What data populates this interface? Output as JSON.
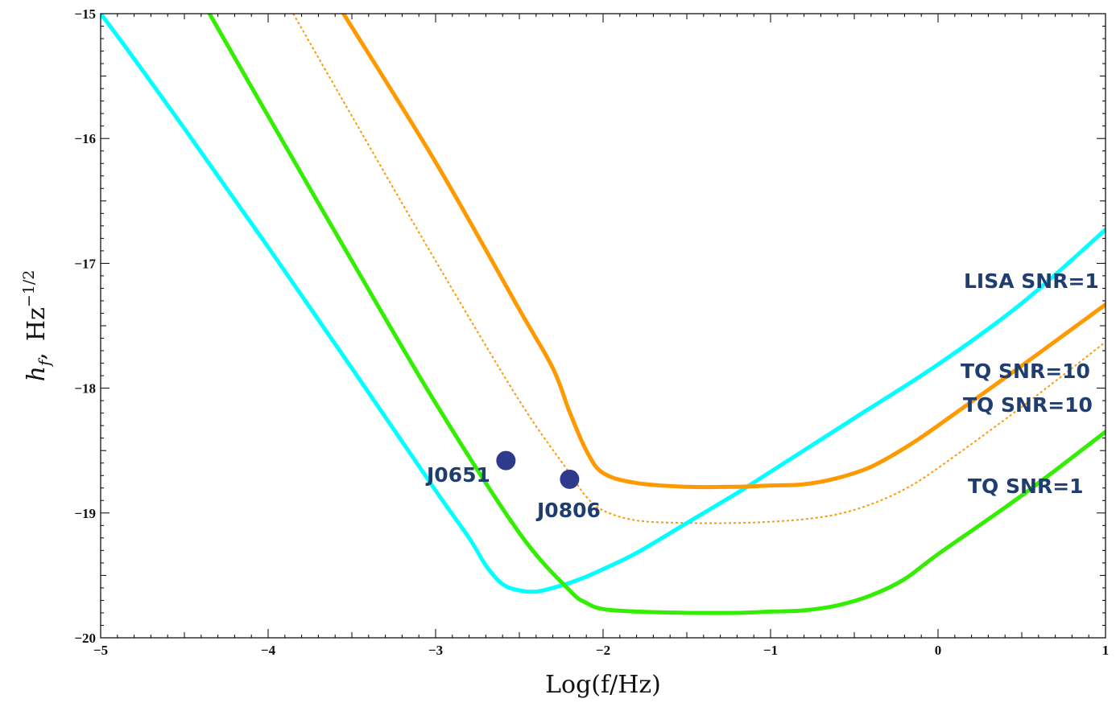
{
  "chart_data": {
    "type": "line",
    "title": "",
    "xlabel": "Log(f/Hz)",
    "ylabel": "h_f,  Hz^{-1/2}",
    "ylabel_parts": {
      "symbol": "h",
      "sub": "f",
      "comma": ",",
      "unit": "Hz",
      "exp": "−1/2"
    },
    "xlim": [
      -5,
      1
    ],
    "ylim": [
      -20,
      -15
    ],
    "xticks": [
      {
        "value": -5,
        "label": "−5"
      },
      {
        "value": -4,
        "label": "−4"
      },
      {
        "value": -3,
        "label": "−3"
      },
      {
        "value": -2,
        "label": "−2"
      },
      {
        "value": -1,
        "label": "−1"
      },
      {
        "value": 0,
        "label": "0"
      },
      {
        "value": 1,
        "label": "1"
      }
    ],
    "yticks": [
      {
        "value": -20,
        "label": "−20"
      },
      {
        "value": -19,
        "label": "−19"
      },
      {
        "value": -18,
        "label": "−18"
      },
      {
        "value": -17,
        "label": "−17"
      },
      {
        "value": -16,
        "label": "−16"
      },
      {
        "value": -15,
        "label": "−15"
      }
    ],
    "grid": false,
    "series": [
      {
        "id": "lisa",
        "color": "#00ffff",
        "style": "solid",
        "x": [
          -5.2,
          -5.0,
          -4.5,
          -4.0,
          -3.5,
          -3.0,
          -2.8,
          -2.7,
          -2.6,
          -2.5,
          -2.4,
          -2.3,
          -2.2,
          -2.1,
          -2.0,
          -1.8,
          -1.5,
          -1.2,
          -1.0,
          -0.5,
          0.0,
          0.5,
          1.0
        ],
        "y": [
          -14.71,
          -15.0,
          -15.92,
          -16.87,
          -17.84,
          -18.82,
          -19.2,
          -19.42,
          -19.57,
          -19.62,
          -19.63,
          -19.6,
          -19.56,
          -19.51,
          -19.45,
          -19.32,
          -19.08,
          -18.84,
          -18.67,
          -18.24,
          -17.81,
          -17.32,
          -16.73
        ]
      },
      {
        "id": "tq-snr10-solid",
        "color": "#ff9900",
        "style": "solid",
        "x": [
          -3.55,
          -3.0,
          -2.5,
          -2.3,
          -2.2,
          -2.1,
          -2.0,
          -1.8,
          -1.5,
          -1.2,
          -1.0,
          -0.8,
          -0.6,
          -0.4,
          -0.2,
          0.0,
          0.5,
          1.0
        ],
        "y": [
          -15.0,
          -16.19,
          -17.37,
          -17.84,
          -18.19,
          -18.5,
          -18.68,
          -18.76,
          -18.79,
          -18.79,
          -18.78,
          -18.77,
          -18.72,
          -18.63,
          -18.48,
          -18.3,
          -17.82,
          -17.33
        ]
      },
      {
        "id": "tq-snr10-dotted",
        "color": "#ff9900",
        "style": "dotted",
        "x": [
          -3.85,
          -3.5,
          -3.0,
          -2.5,
          -2.2,
          -2.1,
          -2.0,
          -1.8,
          -1.5,
          -1.2,
          -1.0,
          -0.8,
          -0.6,
          -0.4,
          -0.2,
          0.0,
          0.5,
          1.0
        ],
        "y": [
          -15.0,
          -15.82,
          -16.98,
          -18.1,
          -18.68,
          -18.87,
          -18.98,
          -19.06,
          -19.08,
          -19.08,
          -19.07,
          -19.05,
          -19.01,
          -18.93,
          -18.81,
          -18.64,
          -18.15,
          -17.63
        ]
      },
      {
        "id": "tq-snr1",
        "color": "#33ee00",
        "style": "solid",
        "x": [
          -4.35,
          -4.0,
          -3.5,
          -3.0,
          -2.5,
          -2.2,
          -2.1,
          -2.0,
          -1.8,
          -1.5,
          -1.2,
          -1.0,
          -0.8,
          -0.6,
          -0.4,
          -0.2,
          0.0,
          0.5,
          1.0
        ],
        "y": [
          -15.0,
          -15.82,
          -16.98,
          -18.12,
          -19.16,
          -19.62,
          -19.72,
          -19.77,
          -19.79,
          -19.8,
          -19.8,
          -19.79,
          -19.78,
          -19.74,
          -19.66,
          -19.53,
          -19.33,
          -18.86,
          -18.35
        ]
      }
    ],
    "series_labels": [
      {
        "text": "LISA SNR=1",
        "x": 1.5,
        "y": -17.15
      },
      {
        "text": "TQ SNR=10",
        "x": 1.5,
        "y": -17.88
      },
      {
        "text": "TQ SNR=10",
        "x": 1.5,
        "y": -18.12
      },
      {
        "text": "TQ SNR=1",
        "x": 1.5,
        "y": -18.8
      }
    ],
    "points": [
      {
        "name": "J0651",
        "x": -2.58,
        "y": -18.58,
        "color": "#2e3a8c",
        "label": "J0651"
      },
      {
        "name": "J0806",
        "x": -2.2,
        "y": -18.73,
        "color": "#2e3a8c",
        "label": "J0806"
      }
    ]
  }
}
